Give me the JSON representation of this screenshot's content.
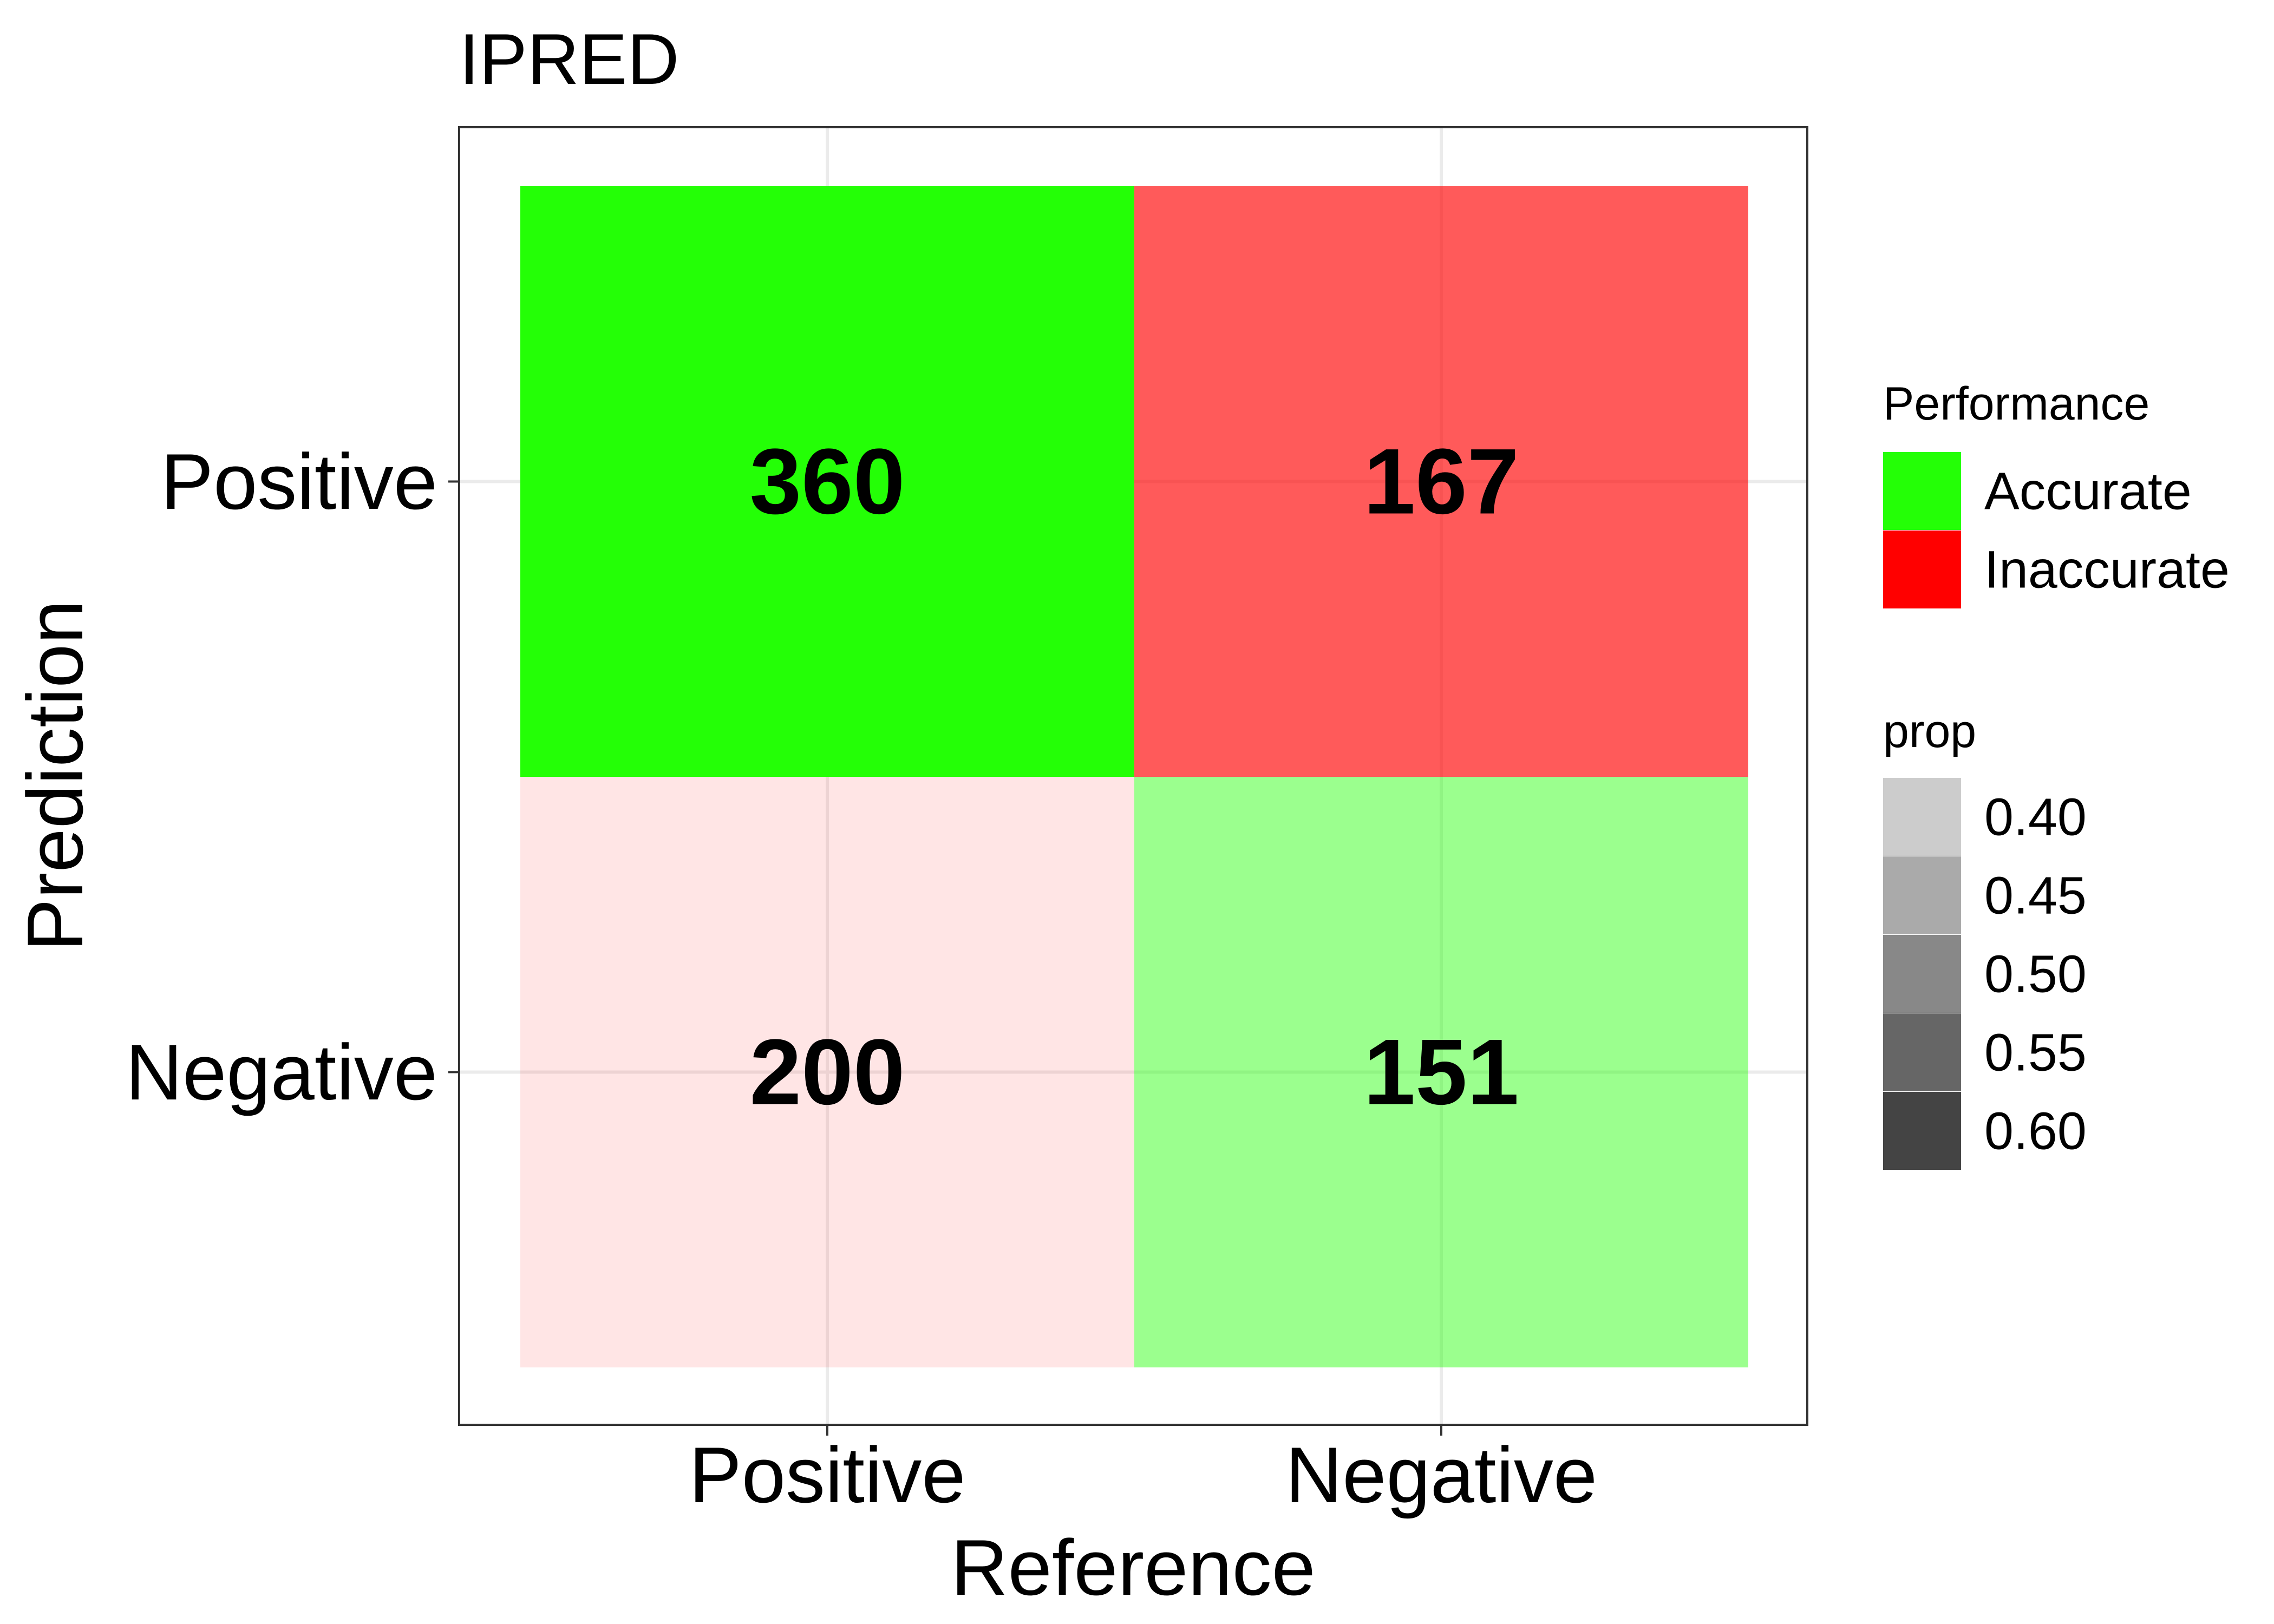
{
  "chart_data": {
    "type": "heatmap",
    "title": "IPRED",
    "xlabel": "Reference",
    "ylabel": "Prediction",
    "x_categories": [
      "Positive",
      "Negative"
    ],
    "y_categories": [
      "Positive",
      "Negative"
    ],
    "cells": [
      {
        "reference": "Positive",
        "prediction": "Positive",
        "value": 360,
        "performance": "Accurate",
        "prop": 0.64
      },
      {
        "reference": "Negative",
        "prediction": "Positive",
        "value": 167,
        "performance": "Inaccurate",
        "prop": 0.53
      },
      {
        "reference": "Positive",
        "prediction": "Negative",
        "value": 200,
        "performance": "Inaccurate",
        "prop": 0.36
      },
      {
        "reference": "Negative",
        "prediction": "Negative",
        "value": 151,
        "performance": "Accurate",
        "prop": 0.47
      }
    ],
    "grid": true,
    "legend_placement": "right",
    "legends": {
      "performance": {
        "title": "Performance",
        "entries": [
          {
            "label": "Accurate",
            "color": "#24ff06"
          },
          {
            "label": "Inaccurate",
            "color": "#ff0000"
          }
        ]
      },
      "prop": {
        "title": "prop",
        "entries": [
          {
            "label": "0.40",
            "color": "#cccccc"
          },
          {
            "label": "0.45",
            "color": "#aaaaaa"
          },
          {
            "label": "0.50",
            "color": "#888888"
          },
          {
            "label": "0.55",
            "color": "#666666"
          },
          {
            "label": "0.60",
            "color": "#444444"
          }
        ]
      }
    },
    "colors": {
      "accurate": "#24ff06",
      "inaccurate": "#ff0000",
      "background": "#ffffff",
      "grid": "#ebebeb",
      "border": "#333333"
    }
  }
}
